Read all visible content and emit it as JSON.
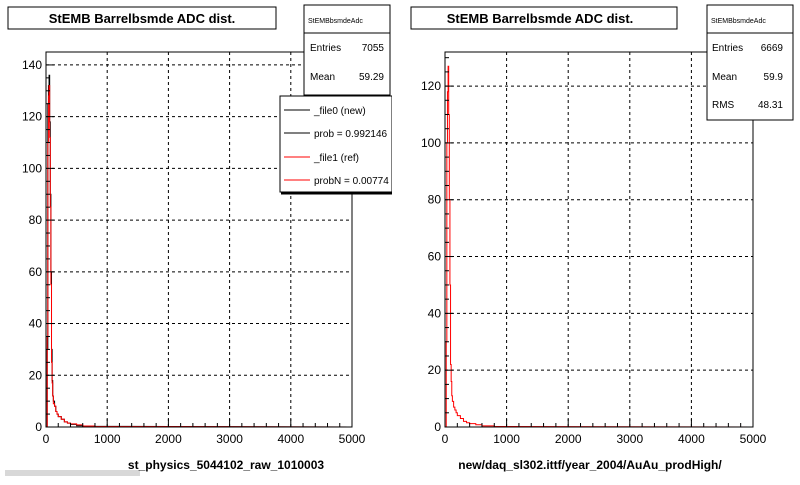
{
  "chart_data": [
    {
      "type": "histogram",
      "title": "StEMB Barrelbsmde ADC dist.",
      "xlabel": "st_physics_5044102_raw_1010003",
      "ylabel": "",
      "xlim": [
        0,
        5000
      ],
      "ylim": [
        0,
        145
      ],
      "xticks": [
        "0",
        "1000",
        "2000",
        "3000",
        "4000",
        "5000"
      ],
      "yticks": [
        "0",
        "20",
        "40",
        "60",
        "80",
        "100",
        "120",
        "140"
      ],
      "grid": true,
      "stats": {
        "name": "StEMBbsmdeAdc",
        "rows": [
          {
            "label": "Entries",
            "value": "7055"
          },
          {
            "label": "Mean",
            "value": "59.29"
          }
        ]
      },
      "legend": {
        "placement": "top-right",
        "entries": [
          {
            "label": "_file0 (new)",
            "color": "#000000"
          },
          {
            "label": "prob = 0.992146",
            "color": "#000000"
          },
          {
            "label": "_file1 (ref)",
            "color": "#ff0000"
          },
          {
            "label": "probN = 0.00774",
            "color": "#ff0000"
          }
        ]
      },
      "series": [
        {
          "name": "_file0 (new)",
          "color": "#000000",
          "x": [
            20,
            30,
            40,
            50,
            60,
            70,
            80,
            90,
            100,
            110,
            120,
            140,
            160,
            180,
            200,
            250,
            300,
            350,
            400,
            500,
            600
          ],
          "values": [
            30,
            125,
            132,
            136,
            118,
            90,
            60,
            30,
            18,
            12,
            10,
            8,
            6,
            5,
            4,
            3,
            2,
            1.5,
            1,
            0.5,
            0.3
          ]
        },
        {
          "name": "_file1 (ref)",
          "color": "#ff0000",
          "x": [
            20,
            30,
            40,
            50,
            60,
            70,
            80,
            90,
            100,
            110,
            120,
            140,
            160,
            180,
            200,
            250,
            300,
            350,
            400,
            500,
            600,
            800
          ],
          "values": [
            35,
            110,
            128,
            132,
            112,
            85,
            55,
            25,
            17,
            12,
            9,
            8,
            6,
            5,
            4,
            3,
            2,
            1.5,
            1.2,
            0.8,
            0.4,
            0.2
          ]
        }
      ]
    },
    {
      "type": "histogram",
      "title": "StEMB Barrelbsmde ADC dist.",
      "xlabel": "new/daq_sl302.ittf/year_2004/AuAu_prodHigh/",
      "ylabel": "",
      "xlim": [
        0,
        5000
      ],
      "ylim": [
        0,
        132
      ],
      "xticks": [
        "0",
        "1000",
        "2000",
        "3000",
        "4000",
        "5000"
      ],
      "yticks": [
        "0",
        "20",
        "40",
        "60",
        "80",
        "100",
        "120"
      ],
      "grid": true,
      "stats": {
        "name": "StEMBbsmdeAdc",
        "rows": [
          {
            "label": "Entries",
            "value": "6669"
          },
          {
            "label": "Mean",
            "value": "59.9"
          },
          {
            "label": "RMS",
            "value": "48.31"
          }
        ]
      },
      "series": [
        {
          "name": "",
          "color": "#ff0000",
          "x": [
            20,
            30,
            40,
            50,
            60,
            70,
            80,
            90,
            100,
            110,
            120,
            140,
            160,
            180,
            200,
            250,
            300,
            350,
            400,
            500,
            600,
            800
          ],
          "values": [
            30,
            100,
            118,
            127,
            110,
            80,
            50,
            22,
            16,
            11,
            9,
            7,
            6,
            5,
            4,
            3,
            2,
            1.5,
            1.2,
            0.8,
            0.4,
            0.2
          ]
        }
      ]
    }
  ]
}
